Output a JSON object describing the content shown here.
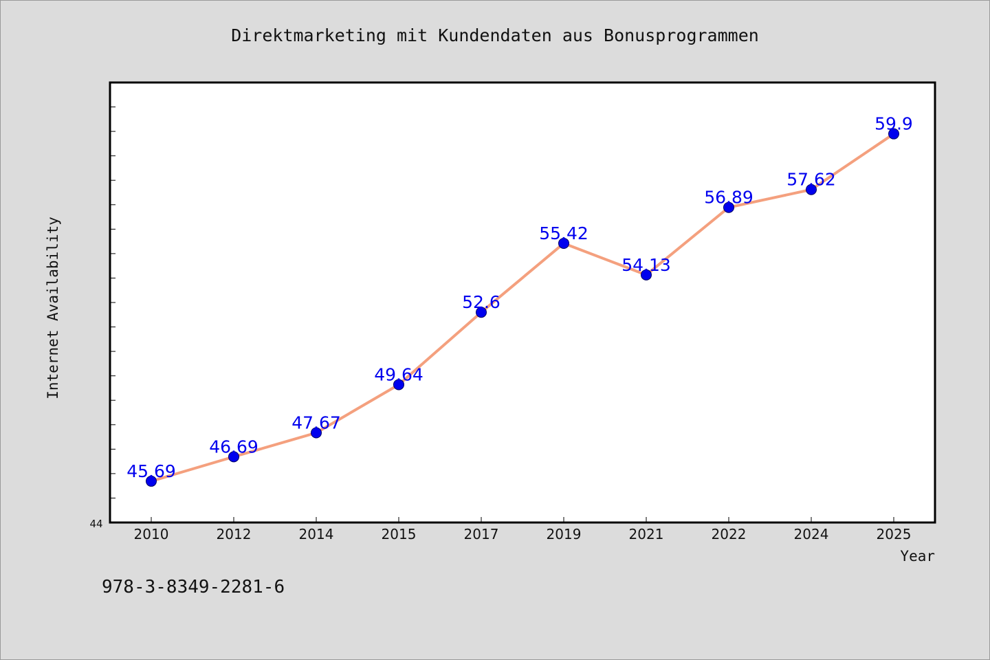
{
  "chart_data": {
    "type": "line",
    "title": "Direktmarketing mit Kundendaten aus Bonusprogrammen",
    "xlabel": "Year",
    "ylabel": "Internet Availability",
    "categories": [
      "2010",
      "2012",
      "2014",
      "2015",
      "2017",
      "2019",
      "2021",
      "2022",
      "2024",
      "2025"
    ],
    "series": [
      {
        "values": [
          45.69,
          46.69,
          47.67,
          49.64,
          52.6,
          55.42,
          54.13,
          56.89,
          57.62,
          59.9
        ],
        "data_labels": [
          "45.69",
          "46.69",
          "47.67",
          "49.64",
          "52.6",
          "55.42",
          "54.13",
          "56.89",
          "57.62",
          "59.9"
        ]
      }
    ],
    "ylim": [
      44,
      62
    ],
    "y_tick_min_label": "44",
    "grid": false,
    "legend": "none",
    "colors": {
      "line": "#f4a07e",
      "marker": "#0000ee",
      "data_label": "#0000ee",
      "plot_background": "#ffffff",
      "page_background": "#dcdcdc"
    }
  },
  "footer": {
    "isbn": "978-3-8349-2281-6"
  }
}
